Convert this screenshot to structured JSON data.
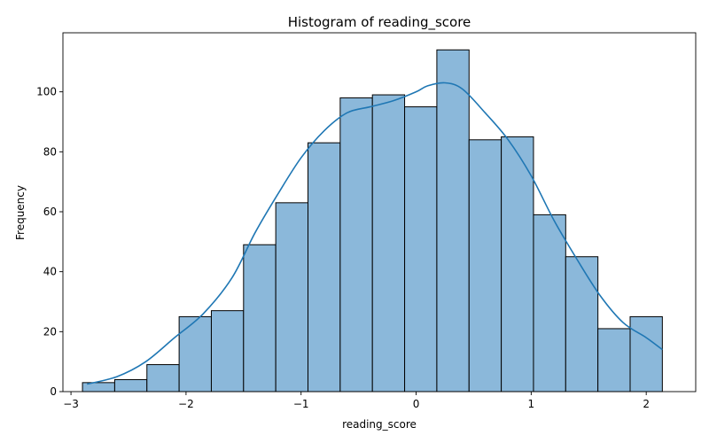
{
  "chart_data": {
    "type": "bar",
    "title": "Histogram of reading_score",
    "xlabel": "reading_score",
    "ylabel": "Frequency",
    "xlim": [
      -3.07,
      2.43
    ],
    "ylim": [
      0,
      119.7
    ],
    "xticks": [
      -3,
      -2,
      -1,
      0,
      1,
      2
    ],
    "xtick_labels": [
      "−3",
      "−2",
      "−1",
      "0",
      "1",
      "2"
    ],
    "yticks": [
      0,
      20,
      40,
      60,
      80,
      100
    ],
    "ytick_labels": [
      "0",
      "20",
      "40",
      "60",
      "80",
      "100"
    ],
    "bin_edges": [
      -2.9,
      -2.62,
      -2.34,
      -2.06,
      -1.78,
      -1.5,
      -1.22,
      -0.94,
      -0.66,
      -0.38,
      -0.1,
      0.18,
      0.46,
      0.74,
      1.02,
      1.3,
      1.58,
      1.86,
      2.14
    ],
    "values": [
      3,
      4,
      9,
      25,
      27,
      49,
      63,
      83,
      98,
      99,
      95,
      114,
      84,
      85,
      59,
      45,
      21,
      25
    ],
    "kde_x": [
      -2.86,
      -2.6,
      -2.35,
      -2.1,
      -1.85,
      -1.6,
      -1.4,
      -1.2,
      -1.0,
      -0.8,
      -0.6,
      -0.4,
      -0.2,
      0.0,
      0.1,
      0.25,
      0.4,
      0.6,
      0.8,
      1.0,
      1.2,
      1.4,
      1.6,
      1.8,
      2.0,
      2.14
    ],
    "kde_y": [
      2.5,
      5,
      10,
      18,
      26,
      38,
      53,
      66,
      78,
      87,
      93,
      95,
      97,
      100,
      102,
      103,
      101,
      93,
      84,
      72,
      57,
      44,
      32,
      23,
      18,
      14
    ],
    "grid": false,
    "legend": "none",
    "colors": {
      "bar_fill": "#8bb8da",
      "bar_edge": "#000000",
      "kde": "#1f77b4"
    }
  }
}
